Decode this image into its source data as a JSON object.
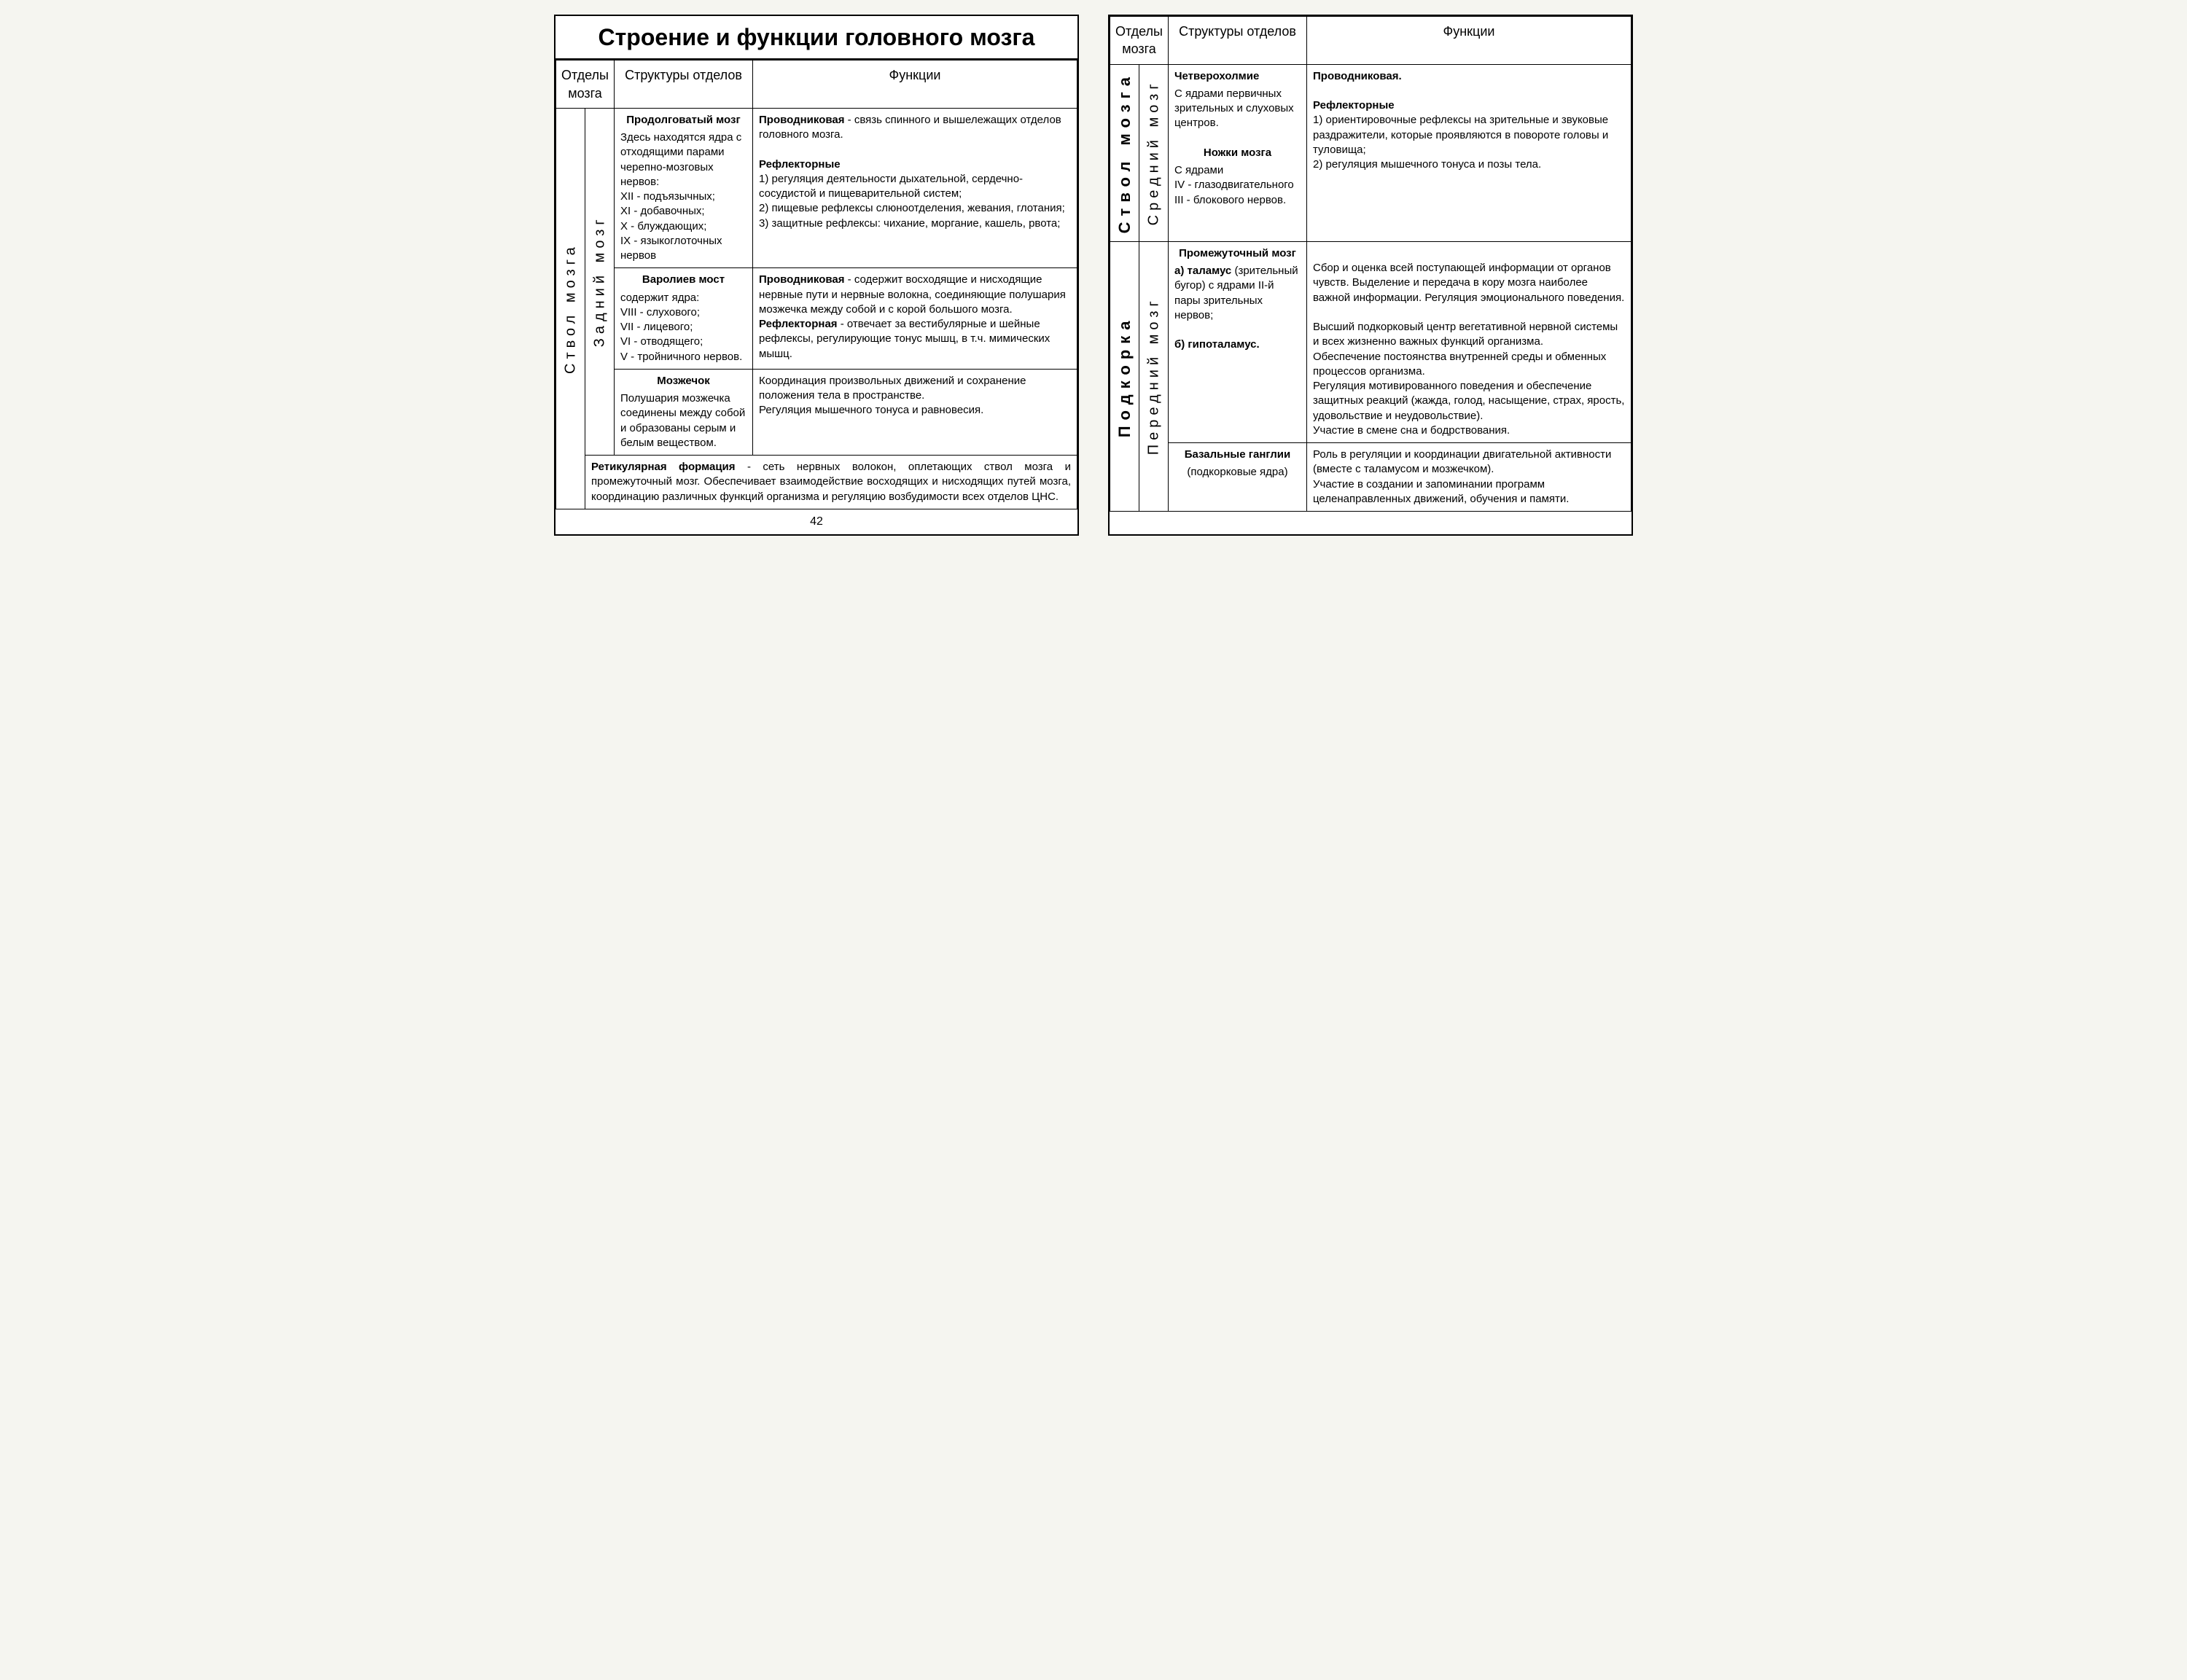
{
  "title": "Строение и функции головного мозга",
  "headers": {
    "col1": "Отделы мозга",
    "col2": "Структуры отделов",
    "col3": "Функции"
  },
  "pageNum": "42",
  "left": {
    "stvol": "Ствол мозга",
    "zadniy": "Задний мозг",
    "rows": [
      {
        "struct_title": "Продолговатый мозг",
        "struct_body": "Здесь находятся ядра с отходящими парами черепно-мозговых нервов:\nXII - подъязычных;\nXI - добавочных;\nX - блуждающих;\nIX - языкоглоточных нервов",
        "func_label1": "Проводниковая",
        "func_body1": " - связь спинного и вышележащих отделов головного мозга.",
        "func_label2": "Рефлекторные",
        "func_body2": "1) регуляция деятельности дыхательной, сердечно-сосудистой и пищеварительной систем;\n2) пищевые рефлексы слюноотделения, жевания, глотания;\n3) защитные рефлексы: чихание, моргание, кашель, рвота;"
      },
      {
        "struct_title": "Варолиев мост",
        "struct_body": "содержит ядра:\nVIII - слухового;\nVII - лицевого;\nVI - отводящего;\nV - тройничного нервов.",
        "func_label1": "Проводниковая",
        "func_body1": " - содержит восходящие и нисходящие нервные пути и нервные волокна, соединяющие полушария мозжечка между собой и с корой большого мозга.",
        "func_label2": "Рефлекторная",
        "func_body2": " - отвечает за вестибулярные и шейные рефлексы, регулирующие тонус мышц, в т.ч. мимических мышц."
      },
      {
        "struct_title": "Мозжечок",
        "struct_body": "Полушария мозжечка соединены между собой и образованы серым и белым веществом.",
        "func_body": "Координация произвольных движений и сохранение положения тела в пространстве.\nРегуляция мышечного тонуса и равновесия."
      }
    ],
    "footer_label": "Ретикулярная формация",
    "footer_body": " - сеть нервных волокон, оплетающих ствол мозга и промежуточный мозг. Обеспечивает взаимодействие восходящих и нисходящих путей мозга, координацию различных функций организма и регуляцию возбудимости всех отделов ЦНС."
  },
  "right": {
    "stvol": "Ствол мозга",
    "sredniy": "Средний мозг",
    "podkorka": "Подкорка",
    "peredniy": "Передний мозг",
    "row1": {
      "struct_t1": "Четверохолмие",
      "struct_b1": "С ядрами первичных зрительных и слуховых центров.",
      "struct_t2": "Ножки мозга",
      "struct_b2": "С ядрами\nIV - глазодвигательного\nIII - блокового нервов.",
      "func_l1": "Проводниковая.",
      "func_l2": "Рефлекторные",
      "func_b2": "1) ориентировочные рефлексы на зрительные и звуковые раздражители, которые проявляются в повороте головы и туловища;\n2) регуляция мышечного тонуса и позы тела."
    },
    "row2": {
      "struct_t": "Промежуточный мозг",
      "struct_a_l": "а) таламус",
      "struct_a_b": "(зрительный бугор) с ядрами II-й пары зрительных нервов;",
      "struct_b_l": "б) гипоталамус.",
      "func_a": "Сбор и оценка всей поступающей информации от органов чувств. Выделение и передача в кору мозга наиболее важной информации. Регуляция эмоционального поведения.",
      "func_b": "Высший подкорковый центр вегетативной нервной системы и всех жизненно важных функций организма.\nОбеспечение постоянства внутренней среды и обменных процессов организма.\nРегуляция мотивированного поведения и обеспечение защитных реакций (жажда, голод, насыщение, страх, ярость, удовольствие и неудовольствие).\nУчастие в смене сна и бодрствования."
    },
    "row3": {
      "struct_t": "Базальные ганглии",
      "struct_b": "(подкорковые ядра)",
      "func": "Роль в регуляции и координации двигательной активности (вместе с таламусом и мозжечком).\nУчастие в создании и запоминании программ целенаправленных движений, обучения и памяти."
    }
  }
}
